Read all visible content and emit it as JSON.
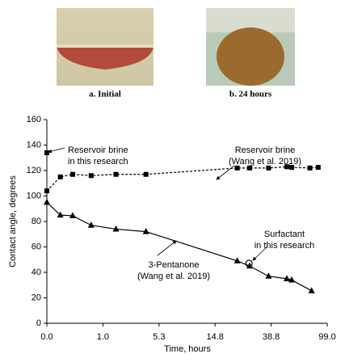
{
  "figures": [
    {
      "caption": "a. Initial"
    },
    {
      "caption": "b. 24 hours"
    }
  ],
  "chart_data": {
    "type": "line",
    "xlabel": "Time, hours",
    "ylabel": "Contact angle, degrees",
    "xscale": "piecewise",
    "xlim": [
      0,
      99
    ],
    "xticks": [
      {
        "value": 0,
        "label": "0.0"
      },
      {
        "value": 1,
        "label": "1.0"
      },
      5.3,
      14.8,
      38.8,
      {
        "value": 99,
        "label": "99.0"
      }
    ],
    "ylim": [
      0,
      160
    ],
    "yticks": [
      0,
      20,
      40,
      60,
      80,
      100,
      120,
      140,
      160
    ],
    "series": [
      {
        "color": "#000000",
        "marker": "square",
        "dash": true,
        "x": [
          0,
          0.24,
          0.46,
          0.79,
          2.0,
          4.3,
          24.3,
          29.6,
          37.7,
          55.6,
          60.9,
          80.4,
          89.3
        ],
        "values": [
          104,
          115,
          117,
          116,
          117,
          117,
          122,
          122,
          122,
          123,
          122.5,
          122,
          122.5
        ]
      },
      {
        "color": "#000000",
        "marker": "triangle",
        "dash": false,
        "x": [
          0,
          0.24,
          0.46,
          0.79,
          2.0,
          4.3,
          24.3,
          29.6,
          37.7,
          55.6,
          60.9,
          82.2
        ],
        "values": [
          95,
          85,
          84.5,
          77,
          74,
          72,
          49,
          45,
          37,
          35,
          34,
          25.5
        ]
      },
      {
        "color": "#000000",
        "marker": "square",
        "dash": false,
        "x": [
          0
        ],
        "values": [
          134
        ]
      },
      {
        "color": "#000000",
        "marker": "circle",
        "dash": false,
        "x": [
          29.3
        ],
        "values": [
          47
        ]
      }
    ],
    "annotations": [
      {
        "lines": [
          "Reservoir brine",
          "in this research"
        ]
      },
      {
        "lines": [
          "Reservoir brine",
          "(Wang et al. 2019)"
        ]
      },
      {
        "lines": [
          "Surfactant",
          "in this research"
        ]
      },
      {
        "lines": [
          "3-Pentanone",
          "(Wang et al. 2019)"
        ]
      }
    ]
  }
}
